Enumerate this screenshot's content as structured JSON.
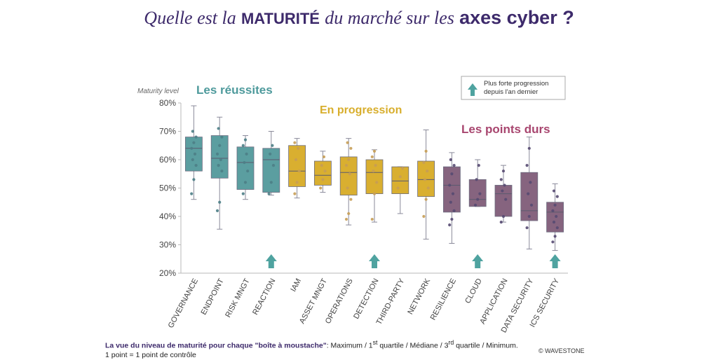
{
  "title": {
    "part1": "Quelle est la",
    "bold1": "MATURITÉ",
    "part2": "du marché sur les",
    "bold2": "axes cyber ?"
  },
  "colors": {
    "title": "#3d2a6b",
    "success": "#5b9ea0",
    "progress": "#d9af30",
    "hard": "#86647f",
    "success_text": "#4e9a9c",
    "progress_text": "#d8ae2c",
    "hard_text": "#a8466f",
    "arrow": "#4fa3a0"
  },
  "chart_data": {
    "type": "boxplot",
    "ylabel": "Maturity level",
    "ylim": [
      20,
      80
    ],
    "yticks": [
      "20%",
      "30%",
      "40%",
      "50%",
      "60%",
      "70%",
      "80%"
    ],
    "groups": [
      {
        "name": "Les réussites",
        "color_key": "success"
      },
      {
        "name": "En progression",
        "color_key": "progress"
      },
      {
        "name": "Les points durs",
        "color_key": "hard"
      }
    ],
    "legend": {
      "label_line1": "Plus forte progression",
      "label_line2": "depuis l'an dernier"
    },
    "categories": [
      {
        "label": "GOVERNANCE",
        "group": 0,
        "min": 46,
        "q1": 56,
        "median": 64,
        "q3": 68,
        "max": 79,
        "highlight": false,
        "points": [
          48,
          53,
          58,
          60,
          62,
          64,
          66,
          68,
          70
        ]
      },
      {
        "label": "ENDPOINT",
        "group": 0,
        "min": 35.5,
        "q1": 53.5,
        "median": 60.5,
        "q3": 68.5,
        "max": 75,
        "highlight": false,
        "points": [
          42,
          45,
          56,
          58,
          60,
          62,
          65,
          68,
          71
        ]
      },
      {
        "label": "RISK MNGT",
        "group": 0,
        "min": 46,
        "q1": 49.5,
        "median": 59,
        "q3": 64.5,
        "max": 68.5,
        "highlight": false,
        "points": [
          48,
          52,
          56,
          59,
          62,
          65,
          67
        ]
      },
      {
        "label": "REACTION",
        "group": 0,
        "min": 47.5,
        "q1": 48.5,
        "median": 60,
        "q3": 64,
        "max": 70,
        "highlight": true,
        "points": [
          48,
          52,
          58,
          62,
          65
        ]
      },
      {
        "label": "IAM",
        "group": 1,
        "min": 46.5,
        "q1": 50.5,
        "median": 56,
        "q3": 65,
        "max": 67.5,
        "highlight": false,
        "points": [
          48,
          52,
          56,
          60,
          64,
          66
        ]
      },
      {
        "label": "ASSET MNGT",
        "group": 1,
        "min": 48.5,
        "q1": 51,
        "median": 54.5,
        "q3": 59.5,
        "max": 63,
        "highlight": false,
        "points": [
          50,
          53,
          56,
          58,
          61
        ]
      },
      {
        "label": "OPERATIONS",
        "group": 1,
        "min": 37,
        "q1": 47.5,
        "median": 55.5,
        "q3": 61,
        "max": 67.5,
        "highlight": false,
        "points": [
          39,
          41,
          46,
          50,
          55,
          58,
          60,
          64,
          66
        ]
      },
      {
        "label": "DETECTION",
        "group": 1,
        "min": 38,
        "q1": 48,
        "median": 55.5,
        "q3": 60,
        "max": 63.5,
        "highlight": true,
        "points": [
          39,
          48,
          52,
          56,
          58,
          61,
          63
        ]
      },
      {
        "label": "THIRD-PARTY",
        "group": 1,
        "min": 41,
        "q1": 48,
        "median": 52.5,
        "q3": 57.5,
        "max": 57.5,
        "highlight": false,
        "points": [
          50,
          54,
          57
        ]
      },
      {
        "label": "NETWORK",
        "group": 1,
        "min": 32,
        "q1": 47,
        "median": 53,
        "q3": 59.5,
        "max": 70.5,
        "highlight": false,
        "points": [
          40,
          46,
          50,
          53,
          56,
          59,
          63
        ]
      },
      {
        "label": "RESILIENCE",
        "group": 2,
        "min": 30.5,
        "q1": 41.5,
        "median": 51,
        "q3": 57.5,
        "max": 62.5,
        "highlight": false,
        "points": [
          37,
          39,
          42,
          45,
          48,
          51,
          55,
          58,
          60
        ]
      },
      {
        "label": "CLOUD",
        "group": 2,
        "min": 43.5,
        "q1": 43.5,
        "median": 46,
        "q3": 53,
        "max": 60,
        "highlight": true,
        "points": [
          44,
          46,
          48,
          53,
          58
        ]
      },
      {
        "label": "APPLICATION",
        "group": 2,
        "min": 38,
        "q1": 40,
        "median": 48,
        "q3": 51,
        "max": 58,
        "highlight": false,
        "points": [
          38,
          40,
          46,
          49,
          51,
          53,
          56
        ]
      },
      {
        "label": "DATA SECURITY",
        "group": 2,
        "min": 28.5,
        "q1": 38.5,
        "median": 42,
        "q3": 55.5,
        "max": 68,
        "highlight": false,
        "points": [
          36,
          40,
          44,
          48,
          52,
          58,
          64
        ]
      },
      {
        "label": "ICS SECURITY",
        "group": 2,
        "min": 28,
        "q1": 34.5,
        "median": 41.5,
        "q3": 45,
        "max": 51.5,
        "highlight": true,
        "points": [
          31,
          33,
          36,
          38,
          40,
          42,
          44,
          47,
          49
        ]
      }
    ]
  },
  "footnote": {
    "bold": "La vue du niveau de maturité pour chaque \"boîte à moustache\"",
    "rest_a": ": Maximum / 1",
    "sup1": "st",
    "rest_b": " quartile / Médiane / 3",
    "sup2": "rd",
    "rest_c": " quartile / Minimum.",
    "line2": "1 point = 1 point de contrôle"
  },
  "credit": "© WAVESTONE"
}
